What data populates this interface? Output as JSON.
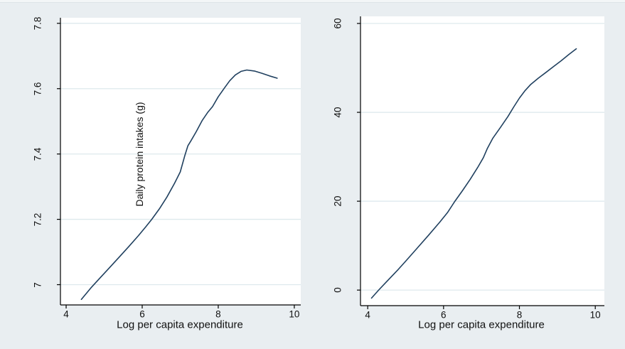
{
  "figure": {
    "background_color": "#e9eef1",
    "plot_background_color": "#ffffff",
    "grid_color": "#dee9ed",
    "axis_color": "#000000",
    "line_color": "#20405f"
  },
  "chart_data": [
    {
      "type": "line",
      "panel": "left",
      "title": "",
      "xlabel": "Log per capita expenditure",
      "inner_label": "Daily protein intakes (g)",
      "xlim": [
        3.85,
        10.17
      ],
      "ylim": [
        6.938,
        7.817
      ],
      "xticks": [
        4,
        6,
        8,
        10
      ],
      "xtick_labels": [
        "4",
        "6",
        "8",
        "10"
      ],
      "yticks": [
        7,
        7.2,
        7.4,
        7.6,
        7.8
      ],
      "ytick_labels": [
        "7",
        "7.2",
        "7.4",
        "7.6",
        "7.8"
      ],
      "grid": "horizontal",
      "legend": "none",
      "series": [
        {
          "name": "daily-protein-intake",
          "x": [
            4.4,
            4.65,
            4.9,
            5.15,
            5.4,
            5.65,
            5.9,
            6.1,
            6.25,
            6.45,
            6.65,
            6.85,
            7.0,
            7.12,
            7.2,
            7.28,
            7.42,
            7.58,
            7.72,
            7.85,
            8.0,
            8.15,
            8.3,
            8.45,
            8.6,
            8.75,
            8.95,
            9.15,
            9.35,
            9.55
          ],
          "y": [
            6.955,
            6.99,
            7.022,
            7.053,
            7.085,
            7.117,
            7.15,
            7.178,
            7.2,
            7.232,
            7.268,
            7.31,
            7.345,
            7.395,
            7.425,
            7.44,
            7.468,
            7.503,
            7.527,
            7.545,
            7.575,
            7.6,
            7.624,
            7.642,
            7.653,
            7.657,
            7.654,
            7.647,
            7.639,
            7.632
          ]
        }
      ]
    },
    {
      "type": "line",
      "panel": "right",
      "title": "",
      "xlabel": "Log per capita expenditure",
      "inner_label": "",
      "xlim": [
        3.81,
        10.24
      ],
      "ylim": [
        -3.5,
        61.6
      ],
      "xticks": [
        4,
        6,
        8,
        10
      ],
      "xtick_labels": [
        "4",
        "6",
        "8",
        "10"
      ],
      "yticks": [
        0,
        20,
        40,
        60
      ],
      "ytick_labels": [
        "0",
        "20",
        "40",
        "60"
      ],
      "grid": "horizontal",
      "legend": "none",
      "series": [
        {
          "name": "right-panel-curve",
          "x": [
            4.1,
            4.3,
            4.5,
            4.8,
            5.0,
            5.3,
            5.6,
            5.9,
            6.1,
            6.3,
            6.5,
            6.7,
            6.9,
            7.05,
            7.15,
            7.3,
            7.5,
            7.7,
            7.85,
            8.0,
            8.15,
            8.3,
            8.5,
            8.7,
            8.9,
            9.1,
            9.3,
            9.5
          ],
          "y": [
            -1.8,
            0.1,
            1.9,
            4.6,
            6.5,
            9.4,
            12.3,
            15.3,
            17.4,
            20.0,
            22.4,
            24.9,
            27.6,
            29.8,
            31.8,
            34.2,
            36.6,
            39.1,
            41.2,
            43.2,
            44.9,
            46.3,
            47.7,
            49.0,
            50.3,
            51.6,
            53.0,
            54.3
          ]
        }
      ]
    }
  ]
}
